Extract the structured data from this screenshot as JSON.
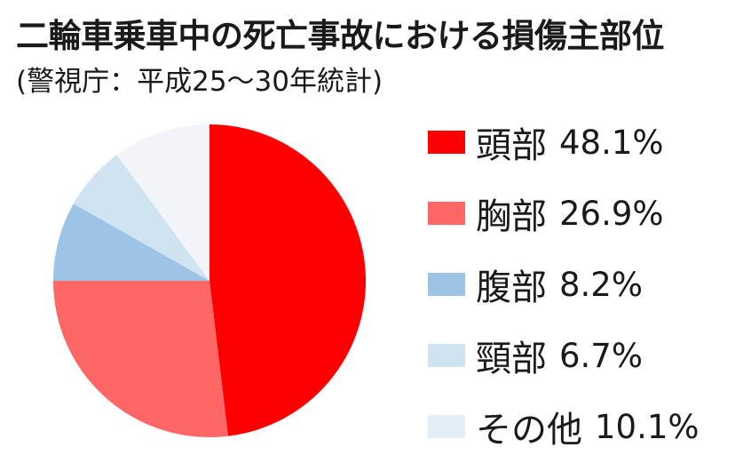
{
  "title": "二輪車乗車中の死亡事故における損傷主部位",
  "subtitle": "(警視庁：平成25〜30年統計)",
  "chart_data": {
    "type": "pie",
    "title": "二輪車乗車中の死亡事故における損傷主部位",
    "subtitle": "(警視庁：平成25〜30年統計)",
    "unit": "%",
    "start_angle": "12 o'clock",
    "direction": "clockwise",
    "legend_position": "right",
    "slices": [
      {
        "label": "頭部",
        "value": 48.1,
        "value_label": "48.1%",
        "color": "#ff0000"
      },
      {
        "label": "胸部",
        "value": 26.9,
        "value_label": "26.9%",
        "color": "#ff6666"
      },
      {
        "label": "腹部",
        "value": 8.2,
        "value_label": "8.2%",
        "color": "#9dc3e6"
      },
      {
        "label": "頸部",
        "value": 6.7,
        "value_label": "6.7%",
        "color": "#cfe3f1"
      },
      {
        "label": "その他",
        "value": 10.1,
        "value_label": "10.1%",
        "color": "#f3f4f8"
      }
    ],
    "legend_swatch_colors": [
      "#ff0000",
      "#ff6666",
      "#9dc3e6",
      "#cfe3f1",
      "#e4eef7"
    ]
  }
}
